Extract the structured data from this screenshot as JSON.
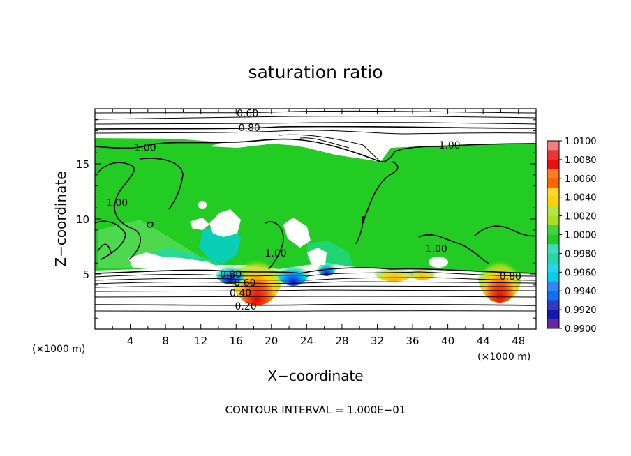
{
  "chart_data": {
    "type": "heatmap",
    "title": "saturation ratio",
    "xlabel": "X−coordinate",
    "ylabel": "Z−coordinate",
    "x_unit_left": "(×1000 m)",
    "x_unit_right": "(×1000 m)",
    "footer": "CONTOUR INTERVAL = 1.000E−01",
    "xlim": [
      0,
      50
    ],
    "ylim": [
      0,
      20
    ],
    "x_ticks": [
      4,
      8,
      12,
      16,
      20,
      24,
      28,
      32,
      36,
      40,
      44,
      48
    ],
    "y_ticks": [
      5,
      10,
      15
    ],
    "colorbar": {
      "labels": [
        "1.0100",
        "1.0080",
        "1.0060",
        "1.0040",
        "1.0020",
        "1.0000",
        "0.9980",
        "0.9960",
        "0.9940",
        "0.9920",
        "0.9900"
      ],
      "colors": [
        "#f08080",
        "#e81010",
        "#ff6600",
        "#ffd200",
        "#a8e020",
        "#22cc22",
        "#20d8a8",
        "#00d0e8",
        "#1070f0",
        "#1018b0",
        "#500090"
      ]
    },
    "contour_labels": [
      {
        "text": "0.60",
        "x": 17.3,
        "y": 19.6
      },
      {
        "text": "0.80",
        "x": 17.5,
        "y": 18.3
      },
      {
        "text": "1.00",
        "x": 5.7,
        "y": 16.5
      },
      {
        "text": "1.00",
        "x": 40.2,
        "y": 16.7
      },
      {
        "text": "1.00",
        "x": 2.5,
        "y": 11.5
      },
      {
        "text": "1.00",
        "x": 20.5,
        "y": 6.9
      },
      {
        "text": "1.00",
        "x": 38.7,
        "y": 7.3
      },
      {
        "text": "0.80",
        "x": 15.4,
        "y": 5.0
      },
      {
        "text": "0.60",
        "x": 17.0,
        "y": 4.2
      },
      {
        "text": "0.40",
        "x": 16.5,
        "y": 3.3
      },
      {
        "text": "0.20",
        "x": 17.1,
        "y": 2.1
      },
      {
        "text": "0.80",
        "x": 47.1,
        "y": 4.8
      }
    ],
    "fields": {
      "background_value": 1.0,
      "hotspots_supersaturated": [
        {
          "x": 18.8,
          "y": 5.3,
          "peak": 1.008
        },
        {
          "x": 45.7,
          "y": 5.3,
          "peak": 1.008
        },
        {
          "x": 33.5,
          "y": 5.4,
          "peak": 1.003
        },
        {
          "x": 36.5,
          "y": 5.4,
          "peak": 1.003
        }
      ],
      "spots_subsaturated": [
        {
          "x": 15.5,
          "y": 5.3,
          "low": 0.992
        },
        {
          "x": 22.8,
          "y": 5.3,
          "low": 0.992
        },
        {
          "x": 26.5,
          "y": 5.6,
          "low": 0.994
        }
      ]
    }
  }
}
